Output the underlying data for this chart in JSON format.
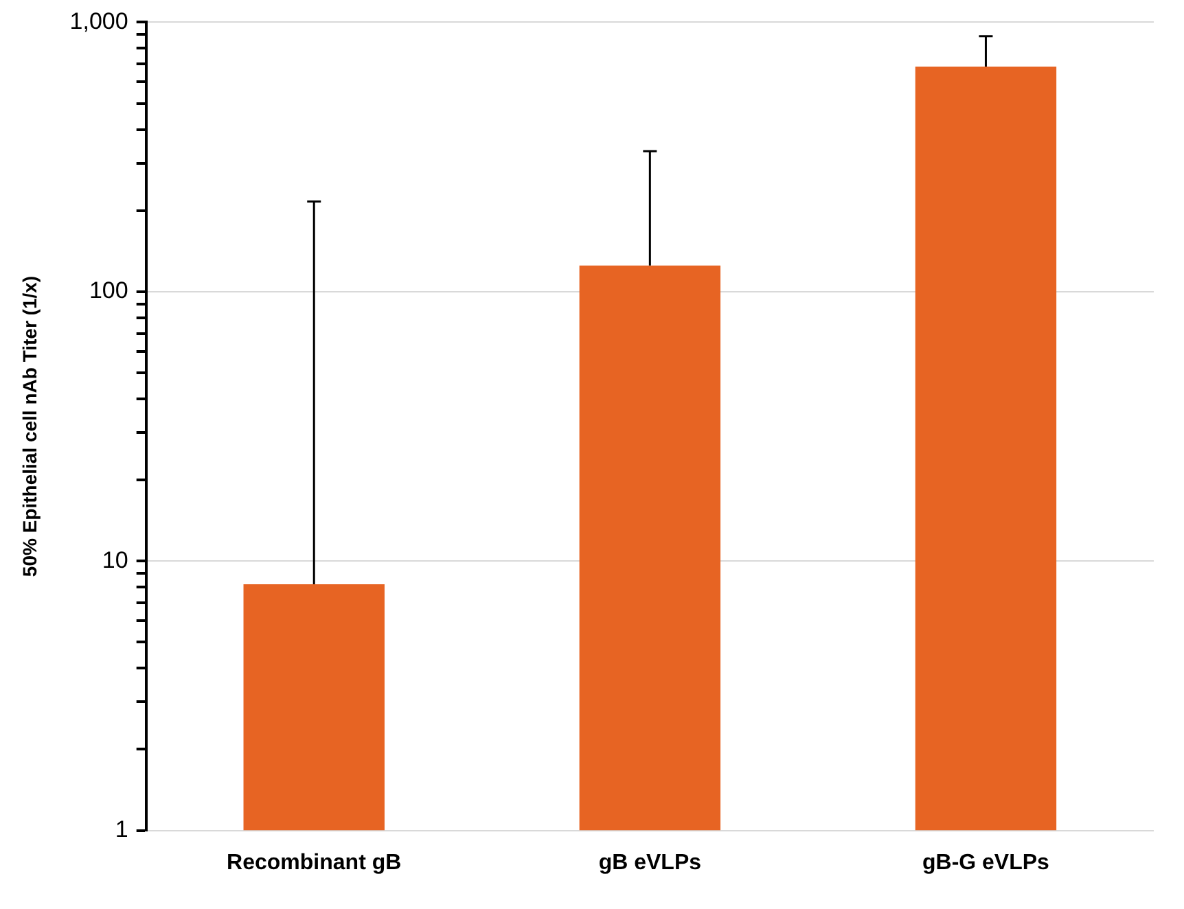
{
  "chart_data": {
    "type": "bar",
    "ylabel": "50% Epithelial cell nAb Titer (1/x)",
    "categories": [
      "Recombinant gB",
      "gB eVLPs",
      "gB-G eVLPs"
    ],
    "values": [
      8.2,
      125,
      685
    ],
    "errors": [
      [
        8.2,
        216
      ],
      [
        125,
        332
      ],
      [
        685,
        888
      ]
    ],
    "color": "#e76423",
    "log": true,
    "ylim": [
      1,
      1000
    ],
    "yticks": [
      1,
      {
        "value": 2,
        "label": null
      },
      {
        "value": 3,
        "label": null
      },
      {
        "value": 4,
        "label": null
      },
      {
        "value": 5,
        "label": null
      },
      {
        "value": 6,
        "label": null
      },
      {
        "value": 7,
        "label": null
      },
      {
        "value": 8,
        "label": null
      },
      {
        "value": 9,
        "label": null
      },
      10,
      {
        "value": 20,
        "label": null
      },
      {
        "value": 30,
        "label": null
      },
      {
        "value": 40,
        "label": null
      },
      {
        "value": 50,
        "label": null
      },
      {
        "value": 60,
        "label": null
      },
      {
        "value": 70,
        "label": null
      },
      {
        "value": 80,
        "label": null
      },
      {
        "value": 90,
        "label": null
      },
      100,
      {
        "value": 200,
        "label": null
      },
      {
        "value": 300,
        "label": null
      },
      {
        "value": 400,
        "label": null
      },
      {
        "value": 500,
        "label": null
      },
      {
        "value": 600,
        "label": null
      },
      {
        "value": 700,
        "label": null
      },
      {
        "value": 800,
        "label": null
      },
      {
        "value": 900,
        "label": null
      },
      {
        "value": 1000,
        "label": "1,000"
      }
    ],
    "grid": "y",
    "legend": false
  }
}
